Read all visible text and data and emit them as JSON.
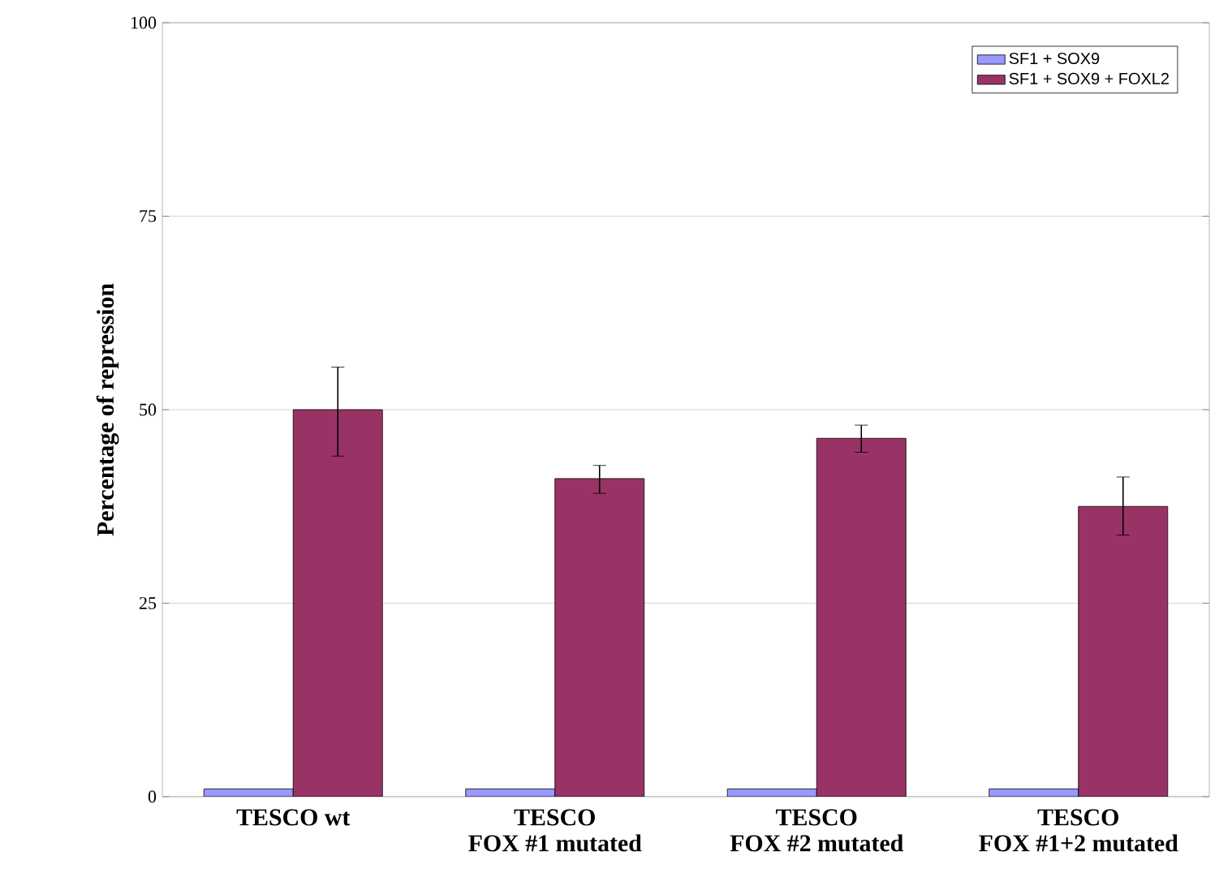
{
  "chart_data": {
    "type": "bar",
    "ylabel": "Percentage of repression",
    "categories": [
      "TESCO wt",
      "TESCO\nFOX #1 mutated",
      "TESCO\nFOX #2 mutated",
      "TESCO\nFOX #1+2 mutated"
    ],
    "series": [
      {
        "name": "SF1 + SOX9",
        "color": "#9999ff",
        "values": [
          1,
          1,
          1,
          1
        ]
      },
      {
        "name": "SF1 + SOX9 + FOXL2",
        "color": "#993366",
        "values": [
          50,
          41.1,
          46.3,
          37.5
        ],
        "errors": [
          [
            44,
            55.5
          ],
          [
            39.2,
            42.8
          ],
          [
            44.5,
            48
          ],
          [
            33.8,
            41.3
          ]
        ]
      }
    ],
    "ylim": [
      0,
      100
    ],
    "yticks": [
      0,
      25,
      50,
      75,
      100
    ],
    "grid": "y",
    "legend": "top right"
  }
}
